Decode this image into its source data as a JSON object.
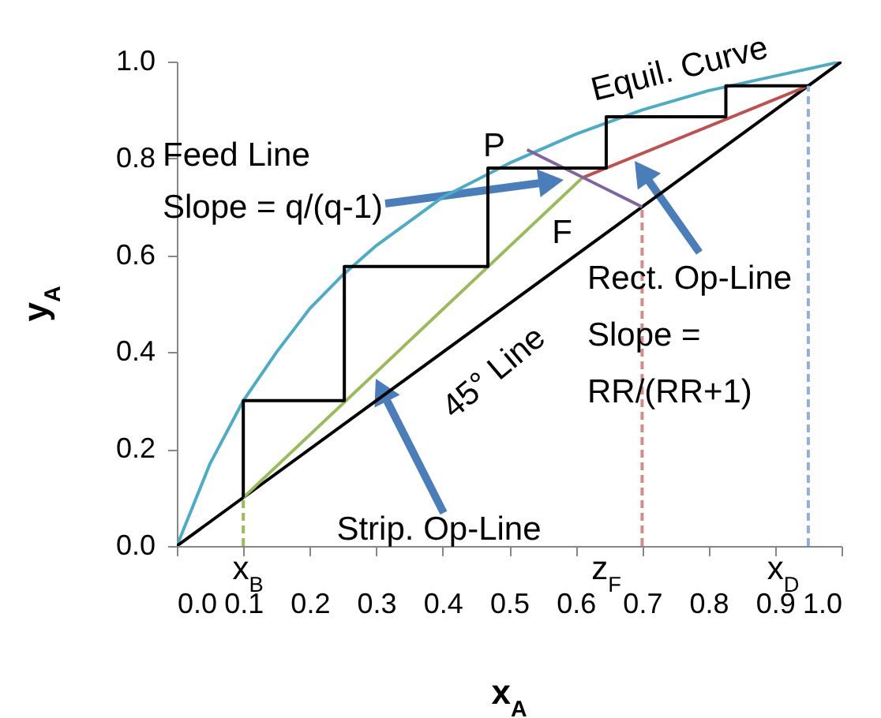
{
  "chart_data": {
    "type": "line",
    "xlabel": "x$_{A}$",
    "ylabel": "y$_{A}$",
    "xlim": [
      0,
      1
    ],
    "ylim": [
      0,
      1
    ],
    "xticks": [
      {
        "value": 0,
        "label": "0.0"
      },
      {
        "value": 0.1,
        "label": "0.1"
      },
      {
        "value": 0.2,
        "label": "0.2"
      },
      {
        "value": 0.3,
        "label": "0.3"
      },
      {
        "value": 0.4,
        "label": "0.4"
      },
      {
        "value": 0.5,
        "label": "0.5"
      },
      {
        "value": 0.6,
        "label": "0.6"
      },
      {
        "value": 0.7,
        "label": "0.7"
      },
      {
        "value": 0.8,
        "label": "0.8"
      },
      {
        "value": 0.9,
        "label": "0.9"
      },
      {
        "value": 1,
        "label": "1.0"
      }
    ],
    "yticks": [
      {
        "value": 0,
        "label": "0.0"
      },
      {
        "value": 0.2,
        "label": "0.2"
      },
      {
        "value": 0.4,
        "label": "0.4"
      },
      {
        "value": 0.6,
        "label": "0.6"
      },
      {
        "value": 0.8,
        "label": "0.8"
      },
      {
        "value": 1,
        "label": "1.0"
      }
    ],
    "series": [
      {
        "color": "#4bacc6",
        "x": [
          0,
          0.05,
          0.1,
          0.15,
          0.2,
          0.25,
          0.3,
          0.4,
          0.5,
          0.6,
          0.7,
          0.8,
          0.9,
          1
        ],
        "values": [
          0,
          0.17,
          0.3,
          0.4,
          0.49,
          0.56,
          0.62,
          0.72,
          0.79,
          0.85,
          0.9,
          0.94,
          0.97,
          1
        ]
      },
      {
        "color": "#000000",
        "x": [
          0,
          1
        ],
        "values": [
          0,
          1
        ]
      },
      {
        "color": "#9bbb59",
        "x": [
          0.1,
          0.61
        ],
        "values": [
          0.1,
          0.76
        ]
      },
      {
        "color": "#c0504d",
        "x": [
          0.61,
          0.95
        ],
        "values": [
          0.76,
          0.95
        ]
      },
      {
        "color": "#8064a2",
        "x": [
          0.527,
          0.7
        ],
        "values": [
          0.818,
          0.7
        ]
      },
      {
        "color": "#000000",
        "x": [
          0.95,
          0.826,
          0.826,
          0.646,
          0.646,
          0.468,
          0.468,
          0.252,
          0.252,
          0.1,
          0.1
        ],
        "values": [
          0.95,
          0.95,
          0.886,
          0.886,
          0.78,
          0.78,
          0.577,
          0.577,
          0.3,
          0.3,
          0.1
        ]
      },
      {
        "color": "#9bbb59",
        "line_style": "dashed",
        "x": [
          0.1,
          0.1
        ],
        "values": [
          0,
          0.1
        ]
      },
      {
        "color": "#d98a88",
        "line_style": "dashed",
        "x": [
          0.7,
          0.7
        ],
        "values": [
          0,
          0.7
        ]
      },
      {
        "color": "#8eb0e0",
        "line_style": "dashed",
        "x": [
          0.95,
          0.95
        ],
        "values": [
          0,
          0.95
        ]
      }
    ],
    "annotations": [
      "Equil. Curve",
      "Feed Line\nSlope = q/(q-1)",
      "P",
      "F",
      "Rect. Op-Line\nSlope =\nRR/(RR+1)",
      "45° Line",
      "Strip. Op-Line",
      "x$_{B}$",
      "z$_{F}$",
      "x$_{D}$"
    ]
  }
}
